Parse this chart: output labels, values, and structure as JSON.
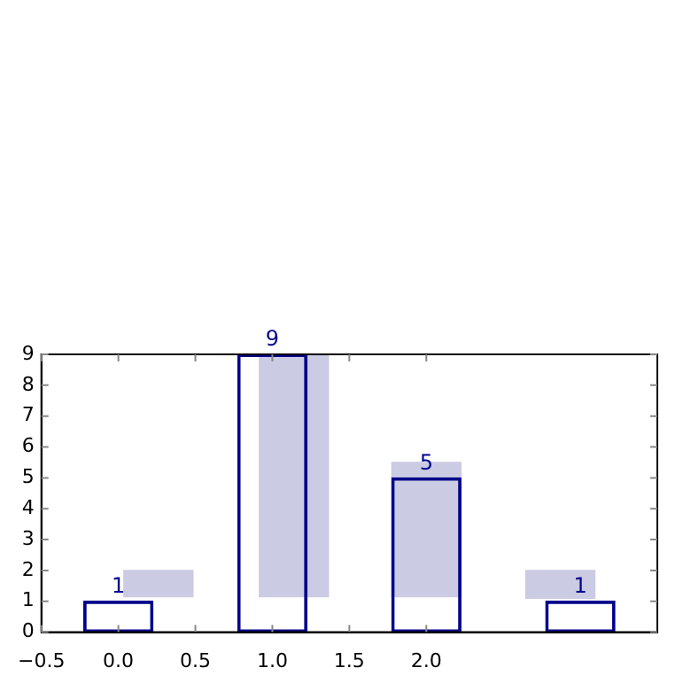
{
  "chart_data": {
    "type": "bar",
    "x": [
      0,
      1,
      2,
      3
    ],
    "xlim": [
      -0.5,
      3.5
    ],
    "xticks": [
      {
        "value": -0.5,
        "label": "−0.5"
      },
      {
        "value": 0,
        "label": "0.0"
      },
      0.5,
      {
        "value": 1,
        "label": "1.0"
      },
      1.5,
      {
        "value": 2,
        "label": "2.0"
      }
    ],
    "ylim": [
      0,
      9
    ],
    "yticks": [
      0,
      1,
      2,
      3,
      4,
      5,
      6,
      7,
      8,
      9
    ],
    "grid": false,
    "legend": false,
    "series": [
      {
        "color": "#cbcbe3",
        "x": [
          0.26,
          1.14,
          2.0,
          2.87
        ],
        "base": [
          1.15,
          1.15,
          1.15,
          1.1
        ],
        "values": [
          0.85,
          7.9,
          4.35,
          0.9
        ]
      },
      {
        "color": "#00008b",
        "values": [
          1,
          9,
          5,
          1
        ],
        "value_labels": [
          "1",
          "9",
          "5",
          "1"
        ]
      }
    ]
  }
}
